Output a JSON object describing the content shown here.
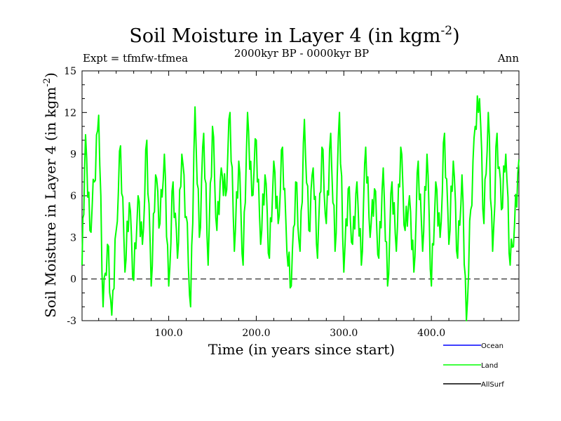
{
  "chart_data": {
    "type": "line",
    "title": "Soil Moisture in Layer 4 (in kgm",
    "title_sup": "-2",
    "title_close": ")",
    "subtitle": "2000kyr BP - 0000kyr BP",
    "left_label": "Expt = tfmfw-tfmea",
    "right_label": "Ann",
    "xlabel": "Time (in years since start)",
    "ylabel": "Soil Moisture in Layer 4 (in kgm",
    "ylabel_sup": "-2",
    "ylabel_close": ")",
    "xlim": [
      1,
      500
    ],
    "ylim": [
      -3,
      15
    ],
    "xticks": [
      100,
      200,
      300,
      400
    ],
    "xtick_labels": [
      "100.0",
      "200.0",
      "300.0",
      "400.0"
    ],
    "yticks": [
      -3,
      0,
      3,
      6,
      9,
      12,
      15
    ],
    "ytick_labels": [
      "-3",
      "0",
      "3",
      "6",
      "9",
      "12",
      "15"
    ],
    "reference_line": 0,
    "legend": [
      {
        "name": "Ocean",
        "color": "#0000ff"
      },
      {
        "name": "Land",
        "color": "#00ff00"
      },
      {
        "name": "AllSurf",
        "color": "#000000"
      }
    ],
    "series": [
      {
        "name": "Land",
        "color": "#00ff00",
        "x": [
          1,
          5,
          10,
          15,
          20,
          25,
          30,
          35,
          40,
          45,
          50,
          55,
          60,
          65,
          70,
          75,
          80,
          85,
          90,
          95,
          100,
          105,
          110,
          115,
          120,
          125,
          130,
          135,
          140,
          145,
          150,
          155,
          160,
          165,
          170,
          175,
          180,
          185,
          190,
          195,
          200,
          205,
          210,
          215,
          220,
          225,
          230,
          235,
          240,
          245,
          250,
          255,
          260,
          265,
          270,
          275,
          280,
          285,
          290,
          295,
          300,
          305,
          310,
          315,
          320,
          325,
          330,
          335,
          340,
          345,
          350,
          355,
          360,
          365,
          370,
          375,
          380,
          385,
          390,
          395,
          400,
          405,
          410,
          415,
          420,
          425,
          430,
          435,
          440,
          445,
          450,
          455,
          460,
          465,
          470,
          475,
          480,
          485,
          490,
          495,
          500
        ],
        "values": [
          1.0,
          10.4,
          3.5,
          7.0,
          11.8,
          -2.0,
          2.5,
          -2.6,
          3.5,
          9.6,
          0.5,
          5.5,
          -0.1,
          6.0,
          2.5,
          10.0,
          -0.5,
          7.5,
          4.0,
          9.0,
          -0.5,
          7.0,
          1.5,
          9.0,
          4.5,
          -2.0,
          12.4,
          3.0,
          10.5,
          1.0,
          11.0,
          3.5,
          8.0,
          6.0,
          12.0,
          2.0,
          8.5,
          1.0,
          12.0,
          6.0,
          10.0,
          2.5,
          7.5,
          1.5,
          8.5,
          4.0,
          9.5,
          2.0,
          -0.5,
          7.0,
          2.0,
          11.5,
          3.5,
          8.0,
          1.5,
          9.5,
          4.0,
          10.5,
          2.0,
          12.0,
          0.5,
          6.5,
          2.5,
          7.0,
          1.0,
          9.5,
          3.0,
          6.5,
          1.5,
          8.0,
          -0.5,
          7.0,
          2.0,
          9.5,
          3.5,
          6.0,
          0.5,
          8.5,
          2.0,
          9.0,
          -0.5,
          7.0,
          3.0,
          10.5,
          2.5,
          8.5,
          1.5,
          7.5,
          -3.0,
          5.0,
          11.0,
          13.0,
          4.0,
          12.0,
          2.0,
          10.5,
          5.0,
          9.0,
          1.0,
          4.0,
          8.6
        ]
      },
      {
        "name": "Ocean",
        "color": "#0000ff",
        "x": [],
        "values": []
      },
      {
        "name": "AllSurf",
        "color": "#000000",
        "x": [],
        "values": []
      }
    ]
  }
}
